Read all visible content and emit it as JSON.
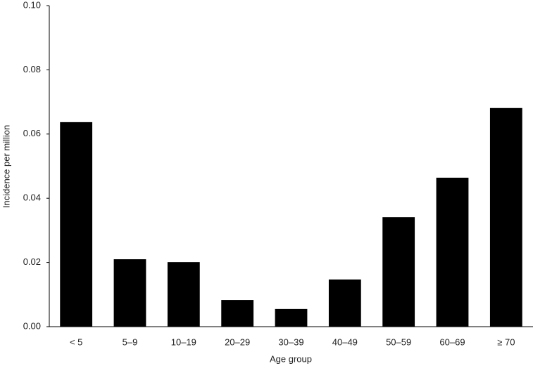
{
  "chart_data": {
    "type": "bar",
    "x_label": "Age group",
    "y_label": "Incidence per million",
    "categories": [
      "< 5",
      "5–9",
      "10–19",
      "20–29",
      "30–39",
      "40–49",
      "50–59",
      "60–69",
      "≥ 70"
    ],
    "values": [
      0.0637,
      0.021,
      0.0201,
      0.0083,
      0.0055,
      0.0147,
      0.0341,
      0.0464,
      0.0681
    ],
    "color": "#000000",
    "ylim": [
      0,
      0.1
    ],
    "yticks": [
      {
        "value": 0,
        "label": "0.00"
      },
      {
        "value": 0.02,
        "label": "0.02"
      },
      {
        "value": 0.04,
        "label": "0.04"
      },
      {
        "value": 0.06,
        "label": "0.06"
      },
      {
        "value": 0.08,
        "label": "0.08"
      },
      {
        "value": 0.1,
        "label": "0.10"
      }
    ],
    "grid": false
  }
}
